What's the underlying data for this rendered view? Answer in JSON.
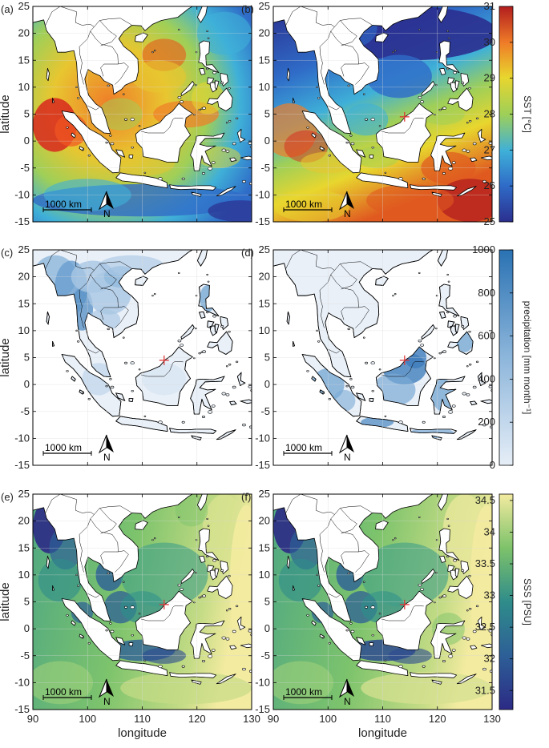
{
  "panels": [
    {
      "label": "(a)",
      "variable": "sst",
      "mark": false
    },
    {
      "label": "(b)",
      "variable": "sst",
      "mark": true
    },
    {
      "label": "(c)",
      "variable": "precip",
      "mark": true
    },
    {
      "label": "(d)",
      "variable": "precip",
      "mark": true
    },
    {
      "label": "(e)",
      "variable": "sss",
      "mark": true
    },
    {
      "label": "(f)",
      "variable": "sss",
      "mark": true
    }
  ],
  "axes": {
    "ylabel": "latitude",
    "xlabel": "longitude",
    "yticks": [
      "25",
      "20",
      "15",
      "10",
      "5",
      "0",
      "-5",
      "-10",
      "-15"
    ],
    "xticks": [
      "90",
      "100",
      "110",
      "120",
      "130"
    ],
    "lon_range": [
      90,
      130
    ],
    "lat_range": [
      -15,
      25
    ]
  },
  "scalebar": "1000 km",
  "north_label": "N",
  "colorbars": [
    {
      "label": "SST [°C]",
      "ticks": [
        "31",
        "30",
        "29",
        "28",
        "27",
        "26",
        "25"
      ],
      "range": [
        25,
        31
      ],
      "colormap": "jet"
    },
    {
      "label": "precipitation [mm month⁻¹]",
      "ticks": [
        "1000",
        "800",
        "600",
        "400",
        "200",
        "0"
      ],
      "range": [
        0,
        1000
      ],
      "colormap": "blues"
    },
    {
      "label": "SSS [PSU]",
      "ticks": [
        "34.5",
        "34",
        "33.5",
        "33",
        "32.5",
        "32",
        "31.5"
      ],
      "range": [
        31.2,
        34.6
      ],
      "colormap": "haline"
    }
  ],
  "marker": {
    "lon": 114,
    "lat": 4.5,
    "color": "#e03030"
  },
  "colors": {
    "land": "#ffffff",
    "coast": "#000000",
    "grid": "#d8d8d8"
  }
}
